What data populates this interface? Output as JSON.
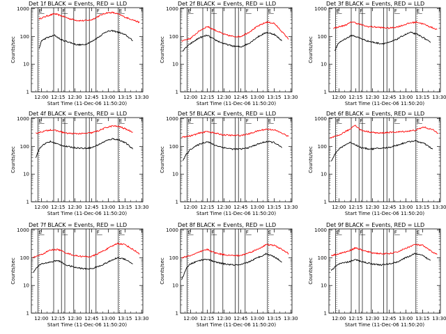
{
  "chart_data": {
    "type": "line",
    "x_ticks": [
      "12:00",
      "12:15",
      "12:30",
      "12:45",
      "13:00",
      "13:15",
      "13:30"
    ],
    "x_tick_minutes": [
      0,
      15,
      30,
      45,
      60,
      75,
      90
    ],
    "xlim_minutes": [
      -9,
      91
    ],
    "y_ticks": [
      "1",
      "10",
      "100",
      "1000"
    ],
    "ylim": [
      1,
      1100
    ],
    "y_scale": "log",
    "xlabel": "Start Time (11-Dec-06 11:50:20)",
    "ylabel": "Counts/sec",
    "red_color": "#ff0000",
    "black_color": "#000000",
    "panels": [
      {
        "title": "Det 1f BLACK = Events, RED = LLD",
        "flag_labels": [
          "E",
          "F",
          "F",
          "E"
        ],
        "flag_minutes": [
          -3,
          18,
          49,
          69
        ],
        "interval_minutes": [
          -3,
          11,
          18,
          21,
          29,
          40,
          43,
          49,
          69
        ],
        "series": [
          {
            "name": "RED",
            "x": [
              -2,
              5,
              12,
              18,
              25,
              32,
              38,
              45,
              52,
              58,
              64,
              70,
              76,
              82,
              88
            ],
            "values": [
              430,
              550,
              660,
              560,
              440,
              380,
              370,
              400,
              560,
              710,
              730,
              620,
              480,
              400,
              320
            ]
          },
          {
            "name": "BLACK",
            "x": [
              -2,
              0,
              5,
              12,
              18,
              25,
              32,
              38,
              45,
              52,
              58,
              64,
              70,
              76,
              82
            ],
            "values": [
              35,
              70,
              90,
              110,
              75,
              62,
              50,
              50,
              65,
              100,
              150,
              160,
              140,
              110,
              70
            ]
          }
        ]
      },
      {
        "title": "Det 2f BLACK = Events, RED = LLD",
        "flag_labels": [
          "E",
          "F",
          "F",
          "E"
        ],
        "flag_minutes": [
          -3,
          18,
          49,
          69
        ],
        "interval_minutes": [
          -3,
          11,
          18,
          21,
          29,
          40,
          43,
          49,
          69
        ],
        "series": [
          {
            "name": "RED",
            "x": [
              -8,
              0,
              8,
              15,
              22,
              30,
              38,
              45,
              52,
              60,
              68,
              75,
              82,
              88
            ],
            "values": [
              70,
              85,
              160,
              230,
              170,
              120,
              100,
              100,
              140,
              230,
              330,
              300,
              150,
              80
            ]
          },
          {
            "name": "BLACK",
            "x": [
              -7,
              -4,
              0,
              8,
              15,
              22,
              30,
              38,
              45,
              52,
              60,
              68,
              75,
              82
            ],
            "values": [
              30,
              40,
              55,
              90,
              110,
              75,
              55,
              45,
              42,
              55,
              95,
              140,
              120,
              70
            ]
          }
        ]
      },
      {
        "title": "Det 3f BLACK = Events, RED = LLD",
        "flag_labels": [
          "E",
          "F",
          "F",
          "E"
        ],
        "flag_minutes": [
          -3,
          18,
          49,
          69
        ],
        "interval_minutes": [
          -3,
          11,
          18,
          21,
          29,
          40,
          43,
          49,
          69
        ],
        "series": [
          {
            "name": "RED",
            "x": [
              -5,
              5,
              12,
              18,
              25,
              32,
              38,
              45,
              52,
              58,
              64,
              70,
              76,
              82,
              88
            ],
            "values": [
              200,
              250,
              340,
              280,
              230,
              220,
              210,
              200,
              220,
              260,
              310,
              330,
              280,
              220,
              180
            ]
          },
          {
            "name": "BLACK",
            "x": [
              -4,
              0,
              5,
              12,
              18,
              25,
              32,
              38,
              45,
              52,
              58,
              64,
              70,
              76,
              82
            ],
            "values": [
              30,
              60,
              80,
              110,
              90,
              70,
              60,
              55,
              60,
              80,
              110,
              140,
              120,
              90,
              60
            ]
          }
        ]
      },
      {
        "title": "Det 4f BLACK = Events, RED = LLD",
        "flag_labels": [
          "E",
          "F",
          "F",
          "E"
        ],
        "flag_minutes": [
          -3,
          18,
          49,
          69
        ],
        "interval_minutes": [
          -3,
          11,
          18,
          21,
          29,
          40,
          43,
          49,
          69
        ],
        "series": [
          {
            "name": "RED",
            "x": [
              -5,
              2,
              8,
              15,
              22,
              30,
              38,
              45,
              52,
              58,
              64,
              70,
              76,
              82
            ],
            "values": [
              300,
              350,
              400,
              360,
              300,
              290,
              290,
              310,
              380,
              480,
              550,
              520,
              420,
              330
            ]
          },
          {
            "name": "BLACK",
            "x": [
              -5,
              -2,
              2,
              8,
              15,
              22,
              30,
              38,
              45,
              52,
              58,
              64,
              70,
              76,
              82
            ],
            "values": [
              40,
              80,
              120,
              150,
              120,
              100,
              90,
              85,
              90,
              120,
              160,
              190,
              170,
              130,
              80
            ]
          }
        ]
      },
      {
        "title": "Det 5f BLACK = Events, RED = LLD",
        "flag_labels": [
          "E",
          "F",
          "F",
          "E"
        ],
        "flag_minutes": [
          -3,
          18,
          49,
          69
        ],
        "interval_minutes": [
          -3,
          11,
          18,
          21,
          29,
          40,
          43,
          49,
          69
        ],
        "series": [
          {
            "name": "RED",
            "x": [
              -8,
              0,
              8,
              15,
              22,
              30,
              38,
              45,
              52,
              60,
              68,
              75,
              82,
              88
            ],
            "values": [
              220,
              240,
              300,
              350,
              300,
              260,
              250,
              250,
              280,
              360,
              420,
              400,
              300,
              230
            ]
          },
          {
            "name": "BLACK",
            "x": [
              -7,
              -4,
              0,
              8,
              15,
              22,
              30,
              38,
              45,
              52,
              60,
              68,
              75,
              82
            ],
            "values": [
              30,
              50,
              80,
              120,
              150,
              110,
              90,
              80,
              80,
              90,
              120,
              150,
              140,
              90
            ]
          }
        ]
      },
      {
        "title": "Det 6f BLACK = Events, RED = LLD",
        "flag_labels": [
          "E",
          "F",
          "F",
          "E"
        ],
        "flag_minutes": [
          -3,
          18,
          49,
          69
        ],
        "interval_minutes": [
          -3,
          11,
          18,
          21,
          29,
          40,
          43,
          49,
          69
        ],
        "series": [
          {
            "name": "RED",
            "x": [
              -8,
              0,
              5,
              10,
              14,
              20,
              28,
              36,
              44,
              52,
              60,
              68,
              76,
              84,
              89
            ],
            "values": [
              200,
              250,
              330,
              420,
              600,
              380,
              330,
              300,
              320,
              330,
              350,
              380,
              500,
              400,
              300
            ]
          },
          {
            "name": "BLACK",
            "x": [
              -7,
              -4,
              0,
              5,
              10,
              14,
              20,
              28,
              36,
              44,
              52,
              60,
              68,
              76,
              84
            ],
            "values": [
              30,
              50,
              80,
              110,
              140,
              120,
              90,
              80,
              85,
              90,
              110,
              140,
              160,
              130,
              80
            ]
          }
        ]
      },
      {
        "title": "Det 7f BLACK = Events, RED = LLD",
        "flag_labels": [
          "E",
          "F",
          "F",
          "E"
        ],
        "flag_minutes": [
          -3,
          18,
          49,
          69
        ],
        "interval_minutes": [
          -3,
          11,
          18,
          21,
          29,
          40,
          43,
          49,
          69
        ],
        "series": [
          {
            "name": "RED",
            "x": [
              -8,
              0,
              8,
              15,
              22,
              30,
              38,
              45,
              52,
              60,
              68,
              75,
              82,
              88
            ],
            "values": [
              100,
              130,
              190,
              200,
              150,
              120,
              110,
              110,
              150,
              220,
              330,
              300,
              200,
              140
            ]
          },
          {
            "name": "BLACK",
            "x": [
              -7,
              -4,
              0,
              8,
              15,
              22,
              30,
              38,
              45,
              52,
              60,
              68,
              75,
              82
            ],
            "values": [
              30,
              45,
              60,
              70,
              80,
              55,
              45,
              40,
              40,
              50,
              70,
              100,
              90,
              60
            ]
          }
        ]
      },
      {
        "title": "Det 8f BLACK = Events, RED = LLD",
        "flag_labels": [
          "E",
          "F",
          "F",
          "E"
        ],
        "flag_minutes": [
          -3,
          18,
          49,
          69
        ],
        "interval_minutes": [
          -3,
          11,
          18,
          21,
          29,
          40,
          43,
          49,
          69
        ],
        "series": [
          {
            "name": "RED",
            "x": [
              -8,
              0,
              8,
              15,
              22,
              30,
              38,
              45,
              52,
              60,
              68,
              75,
              82,
              88
            ],
            "values": [
              100,
              120,
              160,
              200,
              150,
              130,
              120,
              120,
              150,
              200,
              300,
              280,
              200,
              140
            ]
          },
          {
            "name": "BLACK",
            "x": [
              -8,
              -7,
              -4,
              0,
              8,
              15,
              22,
              30,
              38,
              45,
              52,
              60,
              68,
              75,
              82
            ],
            "values": [
              15,
              20,
              40,
              60,
              80,
              90,
              70,
              60,
              55,
              55,
              70,
              100,
              140,
              110,
              70
            ]
          }
        ]
      },
      {
        "title": "Det 9f BLACK = Events, RED = LLD",
        "flag_labels": [
          "E",
          "F",
          "F",
          "E"
        ],
        "flag_minutes": [
          -3,
          18,
          49,
          69
        ],
        "interval_minutes": [
          -3,
          11,
          18,
          21,
          29,
          40,
          43,
          49,
          69
        ],
        "series": [
          {
            "name": "RED",
            "x": [
              -7,
              0,
              8,
              15,
              22,
              30,
              38,
              45,
              52,
              60,
              68,
              75,
              82,
              88
            ],
            "values": [
              120,
              140,
              170,
              230,
              180,
              150,
              140,
              140,
              160,
              220,
              300,
              280,
              180,
              130
            ]
          },
          {
            "name": "BLACK",
            "x": [
              -7,
              -4,
              0,
              8,
              15,
              22,
              30,
              38,
              45,
              52,
              60,
              68,
              75,
              82
            ],
            "values": [
              35,
              45,
              60,
              70,
              85,
              70,
              60,
              55,
              60,
              70,
              100,
              140,
              120,
              80
            ]
          }
        ]
      }
    ]
  }
}
